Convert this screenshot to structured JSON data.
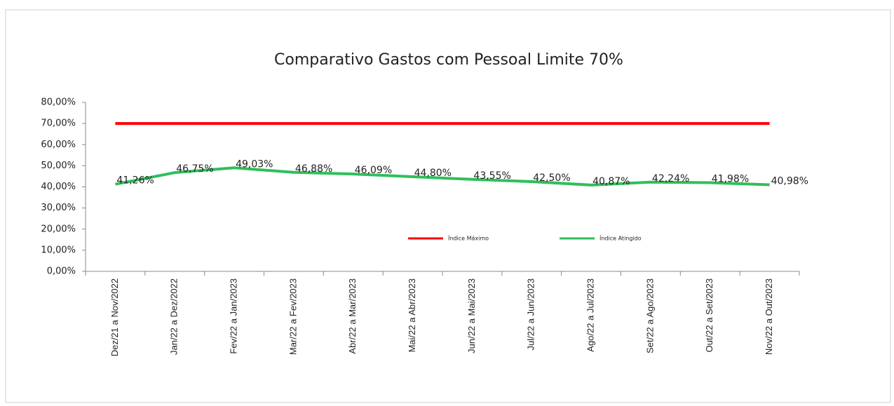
{
  "chart_data": {
    "type": "line",
    "title": "Comparativo Gastos com Pessoal Limite 70%",
    "categories": [
      "Dez/21 a Nov/2022",
      "Jan/22 a Dez/2022",
      "Fev/22 a Jan/2023",
      "Mar/22 a Fev/2023",
      "Abr/22 a Mar/2023",
      "Mai/22 a Abr/2023",
      "Jun/22 a Mai/2023",
      "Jul/22 a Jun/2023",
      "Ago/22 a Jul/2023",
      "Set/22 a Ago/2023",
      "Out/22 a Set/2023",
      "Nov/22 a Out/2023"
    ],
    "series": [
      {
        "name": "Índice Máximo",
        "color": "#ff0000",
        "values": [
          70,
          70,
          70,
          70,
          70,
          70,
          70,
          70,
          70,
          70,
          70,
          70
        ]
      },
      {
        "name": "Índice Atingido",
        "color": "#2fbf5a",
        "values": [
          41.26,
          46.75,
          49.03,
          46.88,
          46.09,
          44.8,
          43.55,
          42.5,
          40.87,
          42.24,
          41.98,
          40.98
        ],
        "value_labels": [
          "41,26%",
          "46,75%",
          "49,03%",
          "46,88%",
          "46,09%",
          "44,80%",
          "43,55%",
          "42,50%",
          "40,87%",
          "42,24%",
          "41,98%",
          "40,98%"
        ]
      }
    ],
    "ylim": [
      0,
      80
    ],
    "yticks": [
      {
        "value": 0,
        "label": "0,00%"
      },
      {
        "value": 10,
        "label": "10,00%"
      },
      {
        "value": 20,
        "label": "20,00%"
      },
      {
        "value": 30,
        "label": "30,00%"
      },
      {
        "value": 40,
        "label": "40,00%"
      },
      {
        "value": 50,
        "label": "50,00%"
      },
      {
        "value": 60,
        "label": "60,00%"
      },
      {
        "value": 70,
        "label": "70,00%"
      },
      {
        "value": 80,
        "label": "80,00%"
      }
    ],
    "grid": false
  }
}
